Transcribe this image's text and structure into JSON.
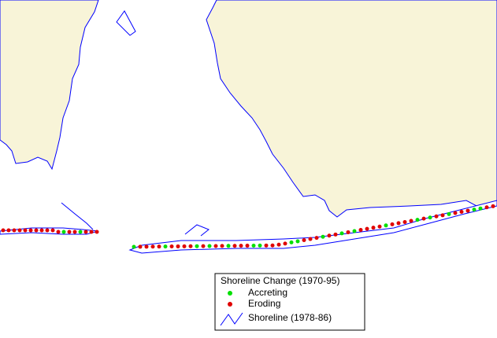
{
  "legend": {
    "title": "Shoreline Change (1970-95)",
    "items": [
      {
        "label": "Accreting",
        "color": "#00e000"
      },
      {
        "label": "Eroding",
        "color": "#e00000"
      }
    ],
    "line_label": "Shoreline (1978-86)",
    "line_color": "#0000ff"
  }
}
